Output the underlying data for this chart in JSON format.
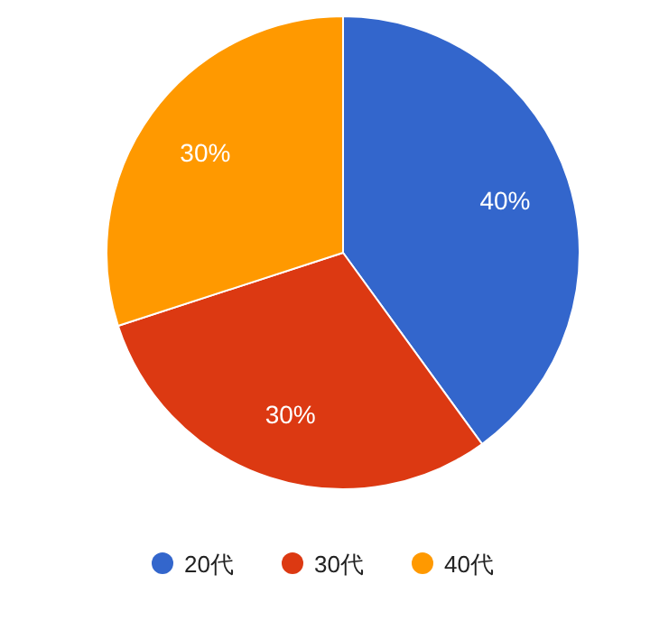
{
  "chart_data": {
    "type": "pie",
    "categories": [
      "20代",
      "30代",
      "40代"
    ],
    "values": [
      40,
      30,
      30
    ],
    "value_labels": [
      "40%",
      "30%",
      "30%"
    ],
    "colors": [
      "#3366cc",
      "#dc3912",
      "#ff9900"
    ],
    "legend": "bottom"
  }
}
